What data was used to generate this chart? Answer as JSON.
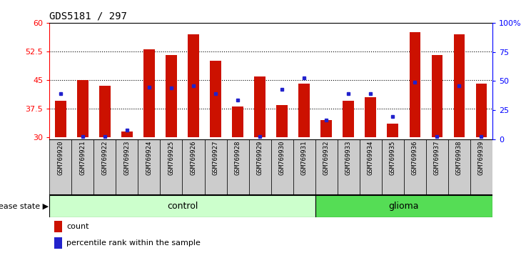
{
  "title": "GDS5181 / 297",
  "samples": [
    "GSM769920",
    "GSM769921",
    "GSM769922",
    "GSM769923",
    "GSM769924",
    "GSM769925",
    "GSM769926",
    "GSM769927",
    "GSM769928",
    "GSM769929",
    "GSM769930",
    "GSM769931",
    "GSM769932",
    "GSM769933",
    "GSM769934",
    "GSM769935",
    "GSM769936",
    "GSM769937",
    "GSM769938",
    "GSM769939"
  ],
  "red_values": [
    39.5,
    45.0,
    43.5,
    31.5,
    53.0,
    51.5,
    57.0,
    50.0,
    38.0,
    46.0,
    38.5,
    44.0,
    34.5,
    39.5,
    40.5,
    33.5,
    57.5,
    51.5,
    57.0,
    44.0
  ],
  "blue_values": [
    41.5,
    30.2,
    30.2,
    31.8,
    43.2,
    43.0,
    43.5,
    41.5,
    39.8,
    30.2,
    42.5,
    45.5,
    34.5,
    41.5,
    41.5,
    35.5,
    44.5,
    30.2,
    43.5,
    30.2
  ],
  "control_count": 12,
  "glioma_count": 8,
  "ylim_left": [
    29.5,
    60
  ],
  "ylim_right": [
    0,
    100
  ],
  "yticks_left": [
    30,
    37.5,
    45,
    52.5,
    60
  ],
  "ytick_labels_left": [
    "30",
    "37.5",
    "45",
    "52.5",
    "60"
  ],
  "yticks_right": [
    0,
    25,
    50,
    75,
    100
  ],
  "ytick_labels_right": [
    "0",
    "25",
    "50",
    "75",
    "100%"
  ],
  "bar_color": "#cc1100",
  "dot_color": "#2222cc",
  "control_color": "#ccffcc",
  "glioma_color": "#55dd55",
  "sample_bg_color": "#cccccc",
  "bar_width": 0.5,
  "bar_bottom": 30,
  "dotted_lines": [
    37.5,
    45.0,
    52.5
  ],
  "legend_count_label": "count",
  "legend_pct_label": "percentile rank within the sample",
  "disease_label": "disease state"
}
